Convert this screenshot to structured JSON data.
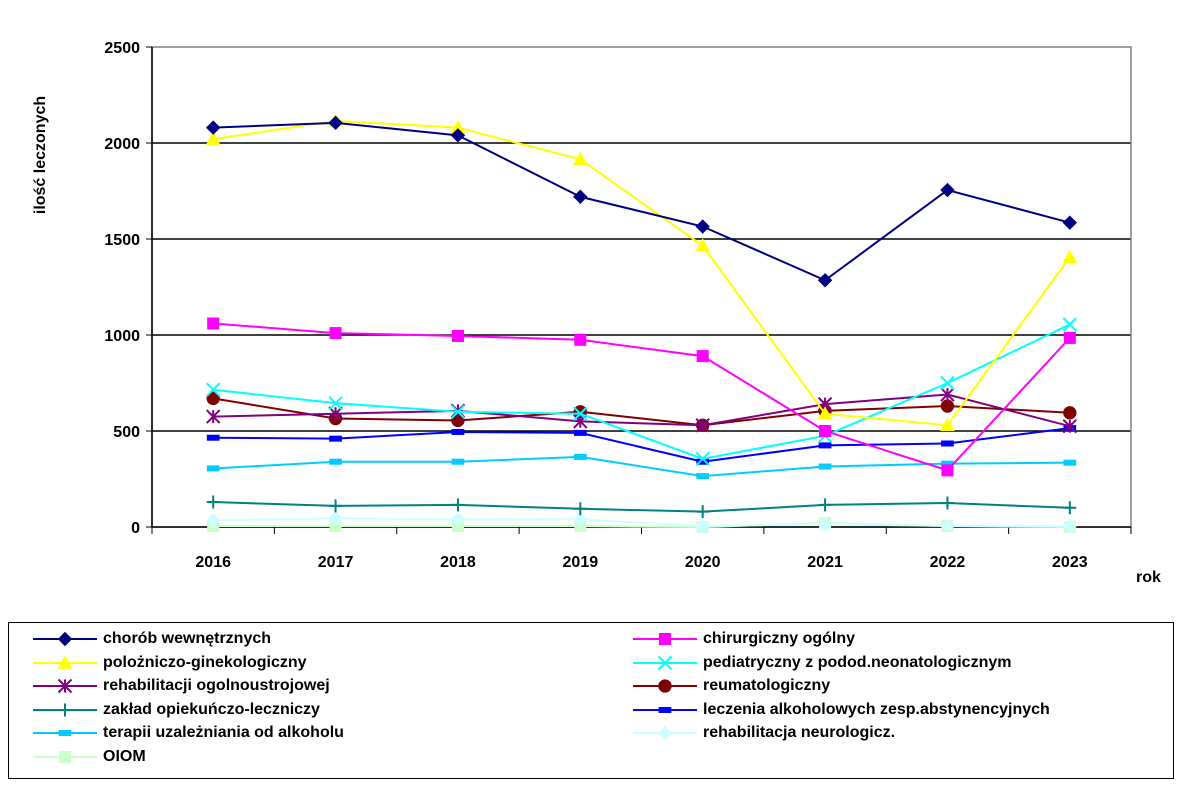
{
  "chart_data": {
    "type": "line",
    "title": "",
    "xlabel": "rok",
    "ylabel": "ilość leczonych",
    "ylim": [
      0,
      2500
    ],
    "yticks": [
      "0",
      "500",
      "1000",
      "1500",
      "2000",
      "2500"
    ],
    "grid": "horizontal",
    "legend_position": "bottom",
    "categories": [
      "2016",
      "2017",
      "2018",
      "2019",
      "2020",
      "2021",
      "2022",
      "2023"
    ],
    "series": [
      {
        "name": "chorób wewnętrznych",
        "color": "#000080",
        "marker": "diamond",
        "values": [
          2080,
          2105,
          2040,
          1720,
          1565,
          1285,
          1755,
          1585
        ]
      },
      {
        "name": "chirurgiczny ogólny",
        "color": "#ff00ff",
        "marker": "square",
        "values": [
          1060,
          1010,
          995,
          975,
          890,
          500,
          295,
          985
        ]
      },
      {
        "name": "polożniczo-ginekologiczny",
        "color": "#ffff00",
        "marker": "triangle",
        "values": [
          2020,
          2115,
          2080,
          1915,
          1465,
          590,
          530,
          1405
        ]
      },
      {
        "name": "pediatryczny z podod.neonatologicznym",
        "color": "#00ffff",
        "marker": "x",
        "values": [
          715,
          645,
          600,
          590,
          355,
          475,
          750,
          1055
        ]
      },
      {
        "name": "rehabilitacji ogolnoustrojowej",
        "color": "#800080",
        "marker": "star",
        "values": [
          575,
          590,
          605,
          550,
          530,
          640,
          690,
          525
        ]
      },
      {
        "name": "reumatologiczny",
        "color": "#800000",
        "marker": "circle",
        "values": [
          670,
          565,
          555,
          600,
          530,
          605,
          630,
          595
        ]
      },
      {
        "name": "zakład opiekuńczo-leczniczy",
        "color": "#008080",
        "marker": "plus",
        "values": [
          130,
          110,
          115,
          95,
          80,
          115,
          125,
          100
        ]
      },
      {
        "name": "leczenia alkoholowych zesp.abstynencyjnych",
        "color": "#0000ff",
        "marker": "dash",
        "values": [
          465,
          460,
          495,
          490,
          340,
          425,
          435,
          515
        ]
      },
      {
        "name": "terapii uzależniania od alkoholu",
        "color": "#00ccff",
        "marker": "dash",
        "values": [
          305,
          340,
          340,
          365,
          265,
          315,
          330,
          335
        ]
      },
      {
        "name": "rehabilitacja neurologicz.",
        "color": "#ccffff",
        "marker": "diamond",
        "values": [
          35,
          45,
          40,
          40,
          5,
          15,
          5,
          5
        ]
      },
      {
        "name": "OIOM",
        "color": "#ccffcc",
        "marker": "square",
        "values": [
          5,
          5,
          5,
          5,
          0,
          20,
          5,
          0
        ]
      }
    ]
  }
}
